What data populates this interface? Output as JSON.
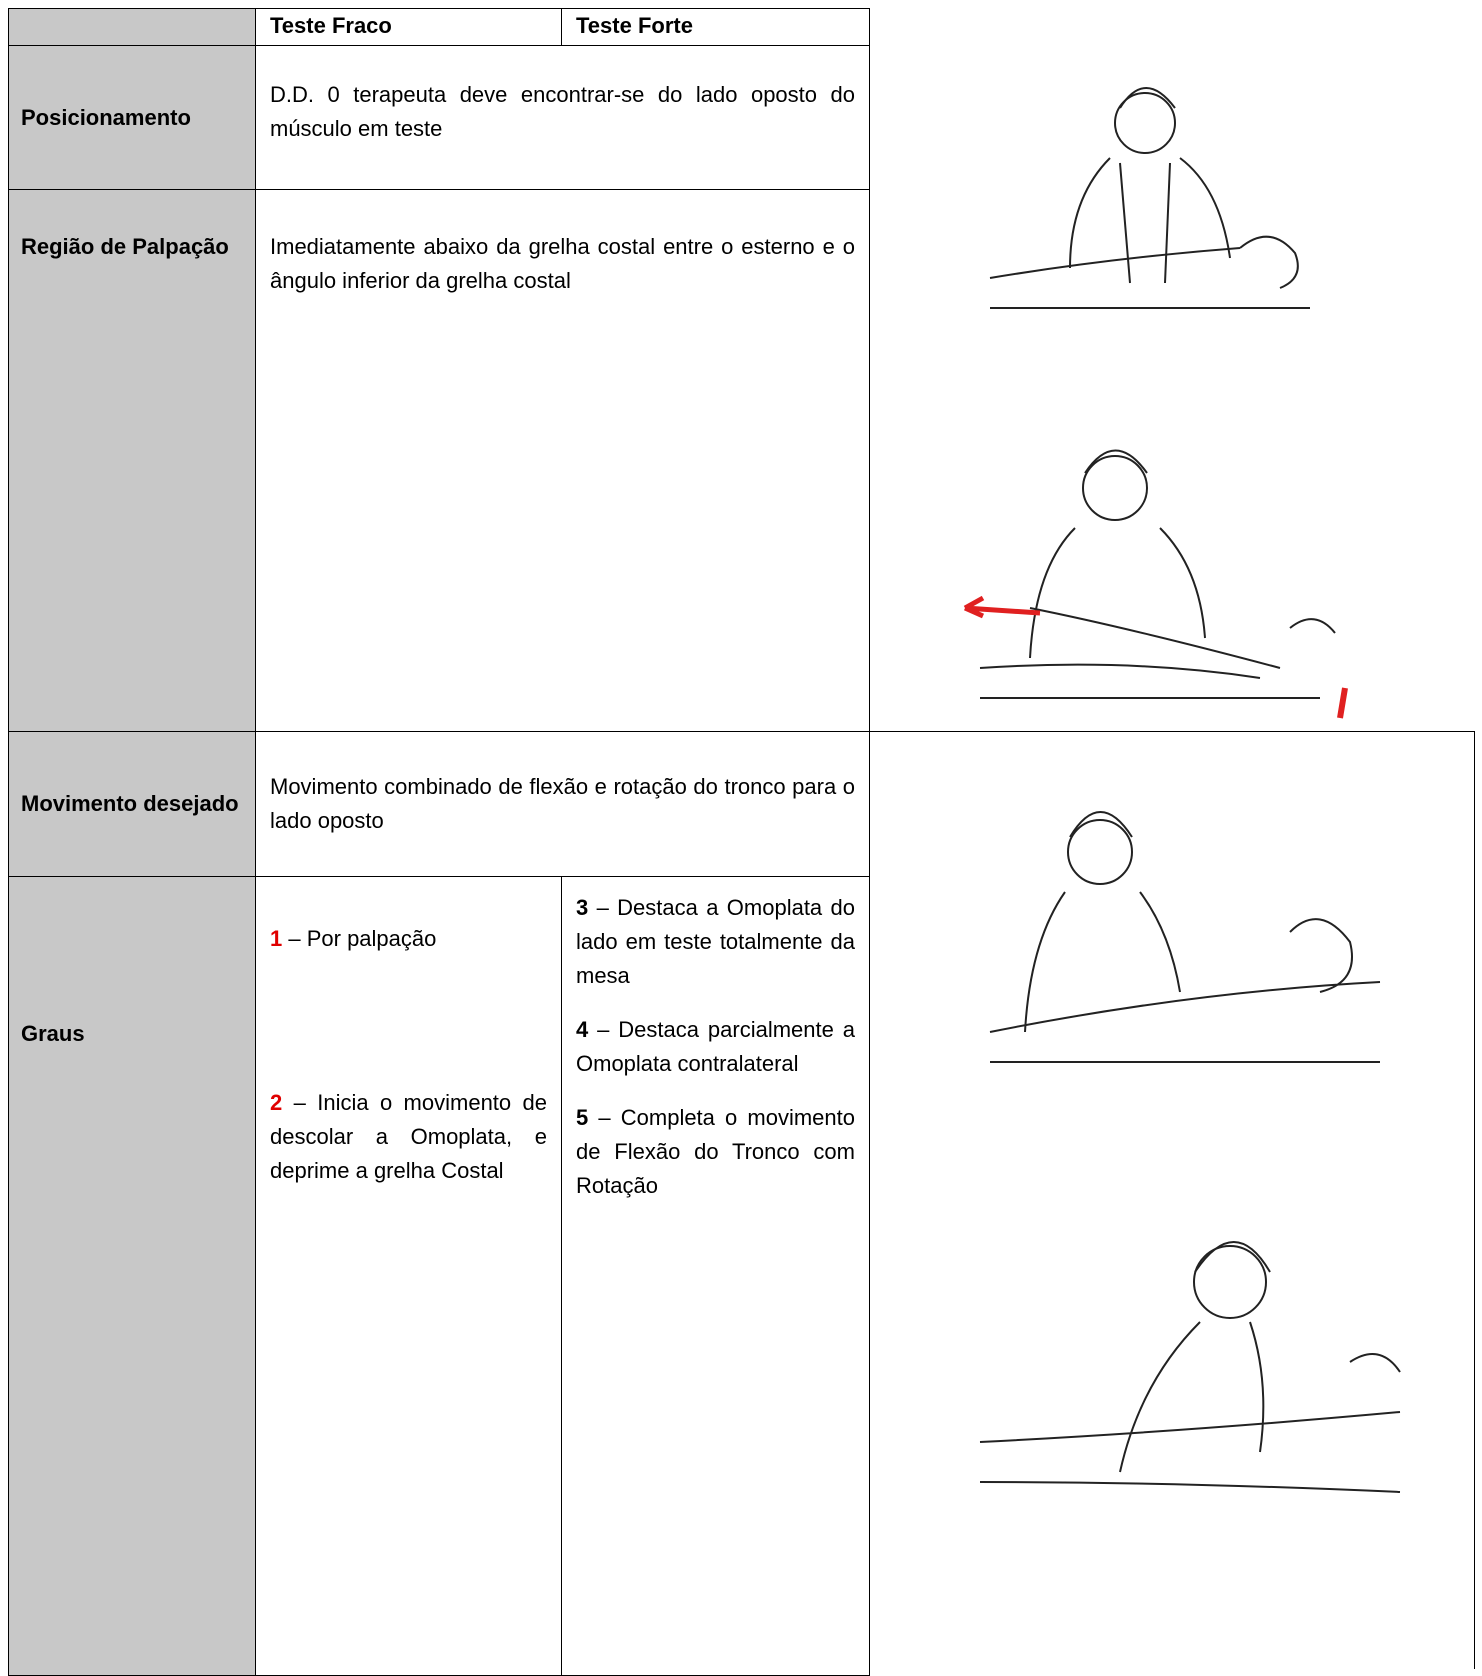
{
  "header": {
    "weak": "Teste Fraco",
    "strong": "Teste Forte"
  },
  "rows": {
    "positioning": {
      "label": "Posicionamento",
      "text": "D.D. 0 terapeuta deve encontrar-se do lado oposto do músculo em teste"
    },
    "palpation": {
      "label": "Região de Palpação",
      "text": "Imediatamente abaixo da grelha costal entre o esterno e o ângulo inferior da grelha costal"
    },
    "movement": {
      "label": "Movimento desejado",
      "text": "Movimento combinado de flexão e rotação do tronco para o lado oposto"
    },
    "grades": {
      "label": "Graus",
      "weak": [
        {
          "grade": "1",
          "text": "– Por palpação"
        },
        {
          "grade": "2",
          "text": "– Inicia o movimento de descolar a Omoplata, e deprime a grelha Costal"
        }
      ],
      "strong": [
        {
          "grade": "3",
          "text": "– Destaca a Omoplata do lado em teste totalmente da mesa"
        },
        {
          "grade": "4",
          "text": "– Destaca parcialmente a Omoplata contralateral"
        },
        {
          "grade": "5",
          "text": "– Completa o movimento de Flexão do Tronco com Rotação"
        }
      ]
    }
  }
}
